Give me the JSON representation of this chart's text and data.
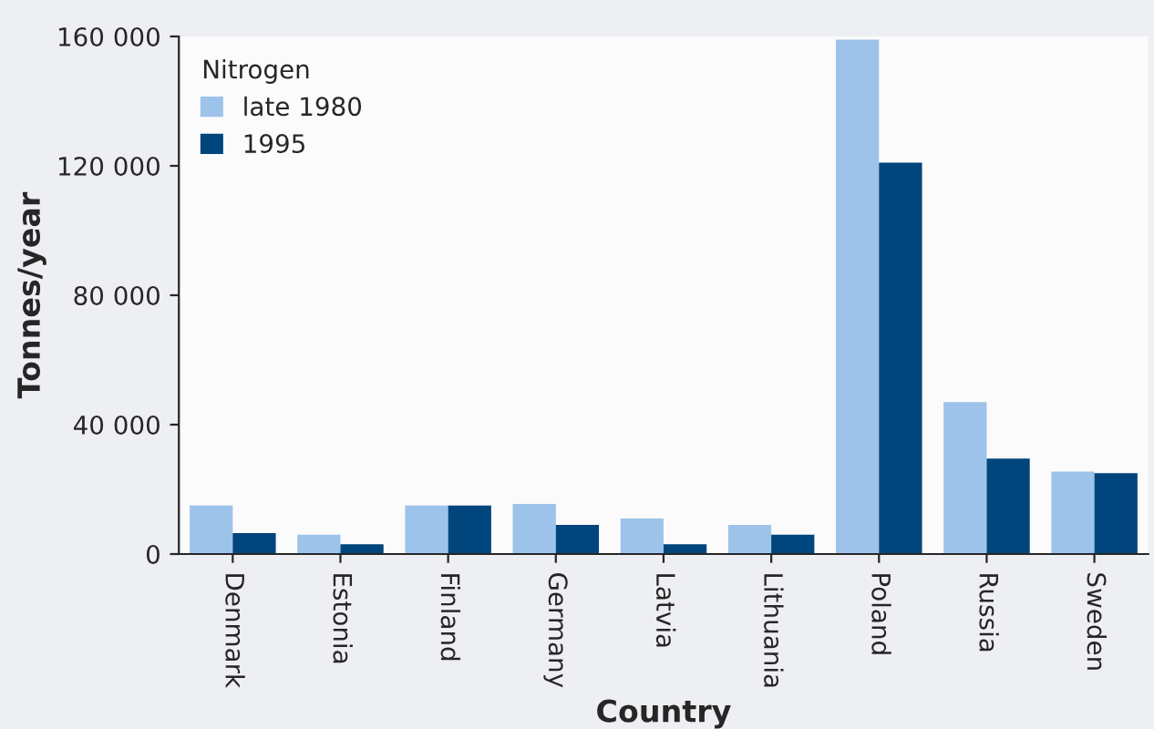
{
  "chart_data": {
    "type": "bar",
    "xlabel": "Country",
    "ylabel": "Tonnes/year",
    "legend_title": "Nitrogen",
    "legend": "top left",
    "grid": false,
    "categories": [
      "Denmark",
      "Estonia",
      "Finland",
      "Germany",
      "Latvia",
      "Lithuania",
      "Poland",
      "Russia",
      "Sweden"
    ],
    "series": [
      {
        "name": "late 1980",
        "color": "#9dc3ea",
        "values": [
          15000,
          6000,
          15000,
          15500,
          11000,
          9000,
          159000,
          47000,
          25500
        ]
      },
      {
        "name": "1995",
        "color": "#00457c",
        "values": [
          6500,
          3000,
          15000,
          9000,
          3000,
          6000,
          121000,
          29500,
          25000
        ]
      }
    ],
    "ylim": [
      0,
      160000
    ],
    "yticks": [
      {
        "value": 0,
        "label": "0"
      },
      {
        "value": 40000,
        "label": "40 000"
      },
      {
        "value": 80000,
        "label": "80 000"
      },
      {
        "value": 120000,
        "label": "120 000"
      },
      {
        "value": 160000,
        "label": "160 000"
      }
    ]
  }
}
